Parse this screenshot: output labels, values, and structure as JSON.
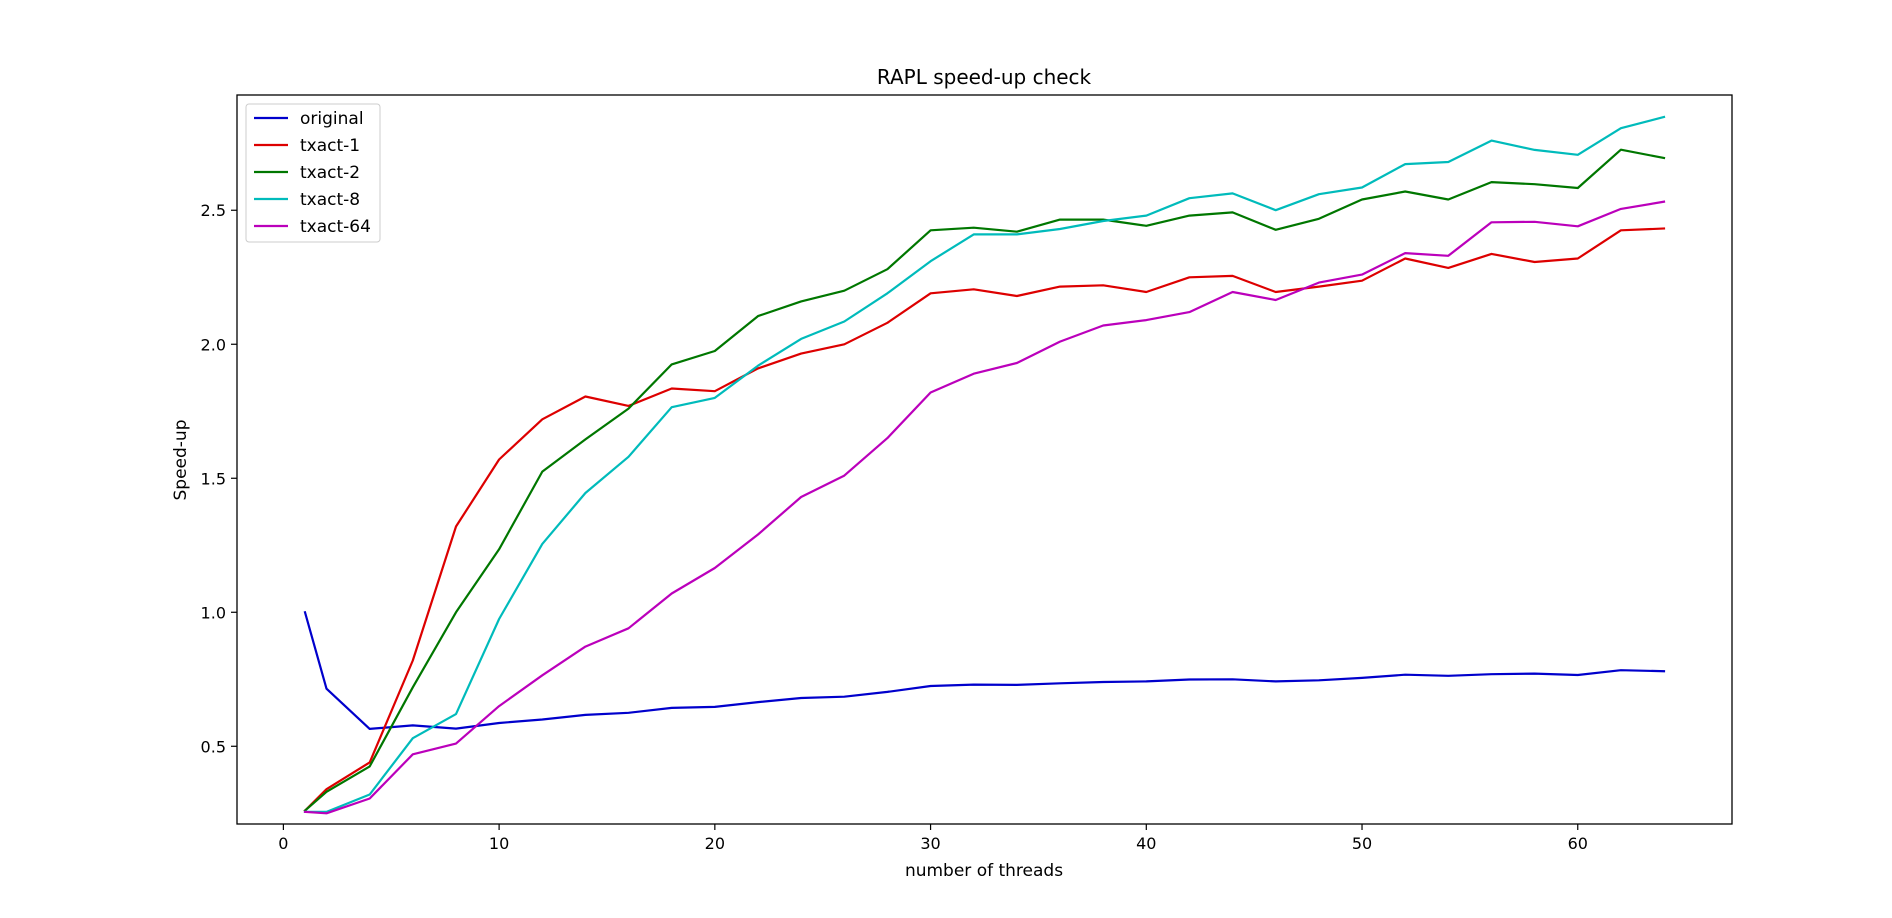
{
  "chart_data": {
    "type": "line",
    "title": "RAPL speed-up check",
    "xlabel": "number of threads",
    "ylabel": "Speed-up",
    "xlim": [
      -2.15,
      67.15
    ],
    "ylim": [
      0.21,
      2.93
    ],
    "xticks": [
      0,
      10,
      20,
      30,
      40,
      50,
      60
    ],
    "yticks": [
      0.5,
      1.0,
      1.5,
      2.0,
      2.5
    ],
    "xtick_labels": [
      "0",
      "10",
      "20",
      "30",
      "40",
      "50",
      "60"
    ],
    "ytick_labels": [
      "0.5",
      "1.0",
      "1.5",
      "2.0",
      "2.5"
    ],
    "grid": false,
    "legend_position": "top-left",
    "x": [
      1,
      2,
      4,
      6,
      8,
      10,
      12,
      14,
      16,
      18,
      20,
      22,
      24,
      26,
      28,
      30,
      32,
      34,
      36,
      38,
      40,
      42,
      44,
      46,
      48,
      50,
      52,
      54,
      56,
      58,
      60,
      62,
      64
    ],
    "series": [
      {
        "name": "original",
        "color": "#0000cc",
        "values": [
          1.0,
          0.715,
          0.565,
          0.578,
          0.566,
          0.587,
          0.6,
          0.617,
          0.625,
          0.643,
          0.647,
          0.665,
          0.68,
          0.685,
          0.703,
          0.725,
          0.73,
          0.729,
          0.735,
          0.74,
          0.742,
          0.749,
          0.75,
          0.742,
          0.746,
          0.755,
          0.767,
          0.763,
          0.769,
          0.771,
          0.766,
          0.784,
          0.78
        ]
      },
      {
        "name": "txact-1",
        "color": "#dd0000",
        "values": [
          0.26,
          0.34,
          0.44,
          0.82,
          1.32,
          1.57,
          1.72,
          1.805,
          1.77,
          1.835,
          1.825,
          1.91,
          1.965,
          2.0,
          2.08,
          2.19,
          2.205,
          2.18,
          2.215,
          2.22,
          2.195,
          2.25,
          2.255,
          2.195,
          2.215,
          2.237,
          2.32,
          2.285,
          2.337,
          2.307,
          2.32,
          2.425,
          2.432
        ]
      },
      {
        "name": "txact-2",
        "color": "#007700",
        "values": [
          0.26,
          0.33,
          0.425,
          0.72,
          1.0,
          1.235,
          1.525,
          1.645,
          1.76,
          1.925,
          1.975,
          2.105,
          2.16,
          2.2,
          2.28,
          2.425,
          2.435,
          2.42,
          2.465,
          2.465,
          2.442,
          2.48,
          2.492,
          2.427,
          2.468,
          2.54,
          2.57,
          2.54,
          2.605,
          2.597,
          2.583,
          2.726,
          2.695
        ]
      },
      {
        "name": "txact-8",
        "color": "#00bbbb",
        "values": [
          0.255,
          0.255,
          0.32,
          0.53,
          0.62,
          0.975,
          1.255,
          1.445,
          1.58,
          1.765,
          1.8,
          1.92,
          2.02,
          2.085,
          2.19,
          2.31,
          2.41,
          2.41,
          2.43,
          2.46,
          2.48,
          2.545,
          2.563,
          2.5,
          2.56,
          2.585,
          2.672,
          2.68,
          2.76,
          2.725,
          2.707,
          2.806,
          2.848
        ]
      },
      {
        "name": "txact-64",
        "color": "#bb00bb",
        "values": [
          0.255,
          0.25,
          0.305,
          0.47,
          0.51,
          0.65,
          0.765,
          0.872,
          0.94,
          1.07,
          1.165,
          1.29,
          1.43,
          1.51,
          1.65,
          1.82,
          1.89,
          1.93,
          2.01,
          2.07,
          2.09,
          2.12,
          2.195,
          2.165,
          2.23,
          2.26,
          2.34,
          2.33,
          2.455,
          2.457,
          2.44,
          2.505,
          2.532
        ]
      }
    ]
  }
}
